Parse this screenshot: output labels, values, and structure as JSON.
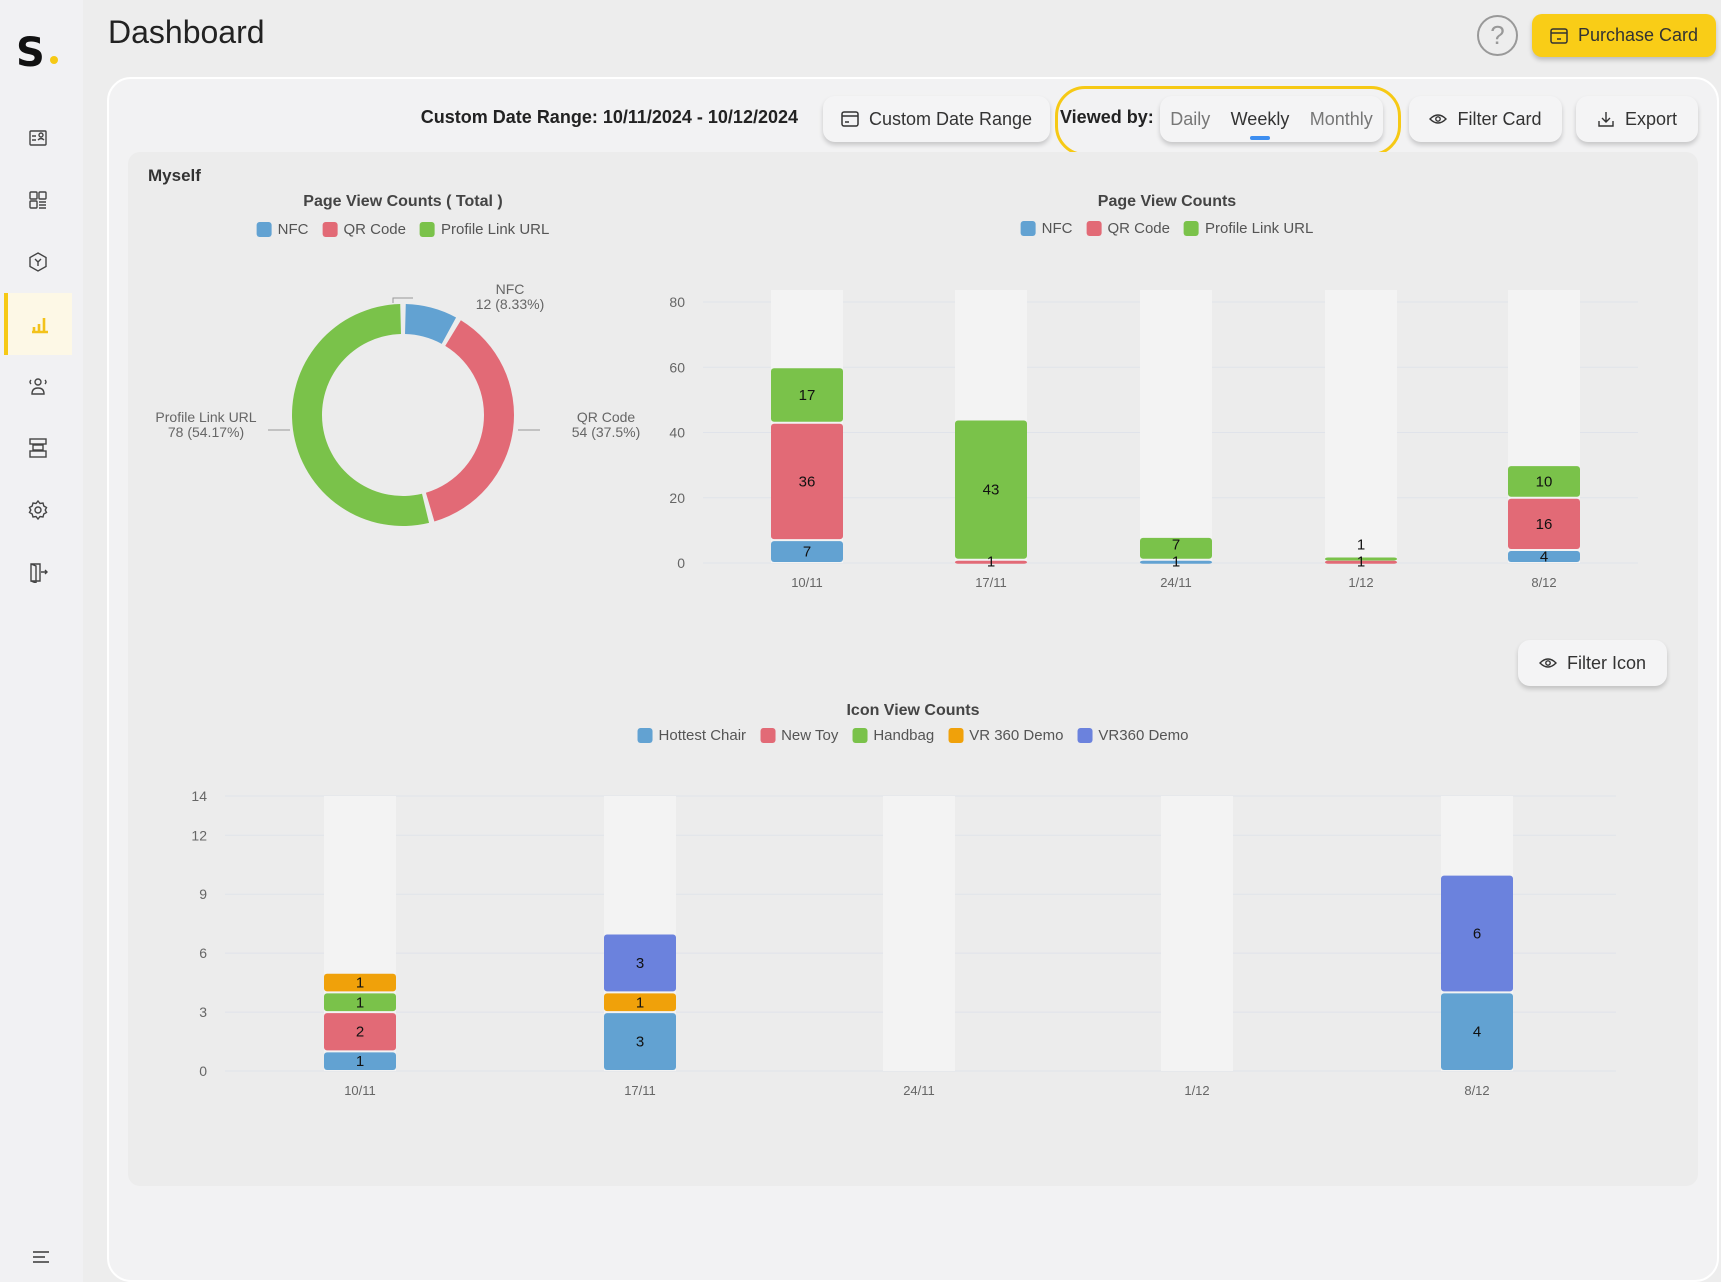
{
  "colors": {
    "accent": "#f9cd17",
    "nfc": "#62a2d2",
    "qr": "#e26a76",
    "profile": "#7ac24a",
    "orange": "#f0a10a",
    "purple": "#6b82dd"
  },
  "sidebar": {
    "logo": "S.",
    "items": [
      {
        "icon": "id-card-icon"
      },
      {
        "icon": "grid-icon"
      },
      {
        "icon": "hexagon-icon"
      },
      {
        "icon": "bar-chart-icon",
        "active": true
      },
      {
        "icon": "users-icon"
      },
      {
        "icon": "layout-icon"
      },
      {
        "icon": "gear-icon"
      },
      {
        "icon": "logout-icon"
      }
    ],
    "menu_icon": "menu-icon"
  },
  "header": {
    "title": "Dashboard",
    "help": "?",
    "purchase_label": "Purchase Card"
  },
  "toolbar": {
    "date_range_text": "Custom Date Range: 10/11/2024 - 10/12/2024",
    "custom_range_label": "Custom Date Range",
    "viewed_by_label": "Viewed by:",
    "view_options": [
      "Daily",
      "Weekly",
      "Monthly"
    ],
    "selected_view": "Weekly",
    "filter_card_label": "Filter Card",
    "export_label": "Export"
  },
  "panel": {
    "title": "Myself",
    "filter_icon_label": "Filter Icon"
  },
  "chart_data": [
    {
      "type": "pie",
      "title": "Page View Counts ( Total )",
      "legend": [
        "NFC",
        "QR Code",
        "Profile Link URL"
      ],
      "slices": [
        {
          "name": "NFC",
          "value": 12,
          "label": "12 (8.33%)"
        },
        {
          "name": "QR Code",
          "value": 54,
          "label": "54 (37.5%)"
        },
        {
          "name": "Profile Link URL",
          "value": 78,
          "label": "78 (54.17%)"
        }
      ]
    },
    {
      "type": "bar",
      "stacked": true,
      "title": "Page View Counts",
      "legend_position": "top",
      "categories": [
        "10/11",
        "17/11",
        "24/11",
        "1/12",
        "8/12"
      ],
      "ylim": [
        0,
        80
      ],
      "yticks": [
        0,
        20,
        40,
        60,
        80
      ],
      "series": [
        {
          "name": "NFC",
          "values": [
            7,
            0,
            1,
            0,
            4
          ]
        },
        {
          "name": "QR Code",
          "values": [
            36,
            1,
            0,
            1,
            16
          ]
        },
        {
          "name": "Profile Link URL",
          "values": [
            17,
            43,
            7,
            1,
            10
          ]
        }
      ]
    },
    {
      "type": "bar",
      "stacked": true,
      "title": "Icon View Counts",
      "legend_position": "top",
      "categories": [
        "10/11",
        "17/11",
        "24/11",
        "1/12",
        "8/12"
      ],
      "ylim": [
        0,
        14
      ],
      "yticks": [
        0,
        3,
        6,
        9,
        12,
        14
      ],
      "series": [
        {
          "name": "Hottest Chair",
          "values": [
            1,
            3,
            0,
            0,
            4
          ]
        },
        {
          "name": "New Toy",
          "values": [
            2,
            0,
            0,
            0,
            0
          ]
        },
        {
          "name": "Handbag",
          "values": [
            1,
            0,
            0,
            0,
            0
          ]
        },
        {
          "name": "VR 360 Demo",
          "values": [
            1,
            1,
            0,
            0,
            0
          ]
        },
        {
          "name": "VR360 Demo",
          "values": [
            0,
            3,
            0,
            0,
            6
          ]
        }
      ]
    }
  ]
}
